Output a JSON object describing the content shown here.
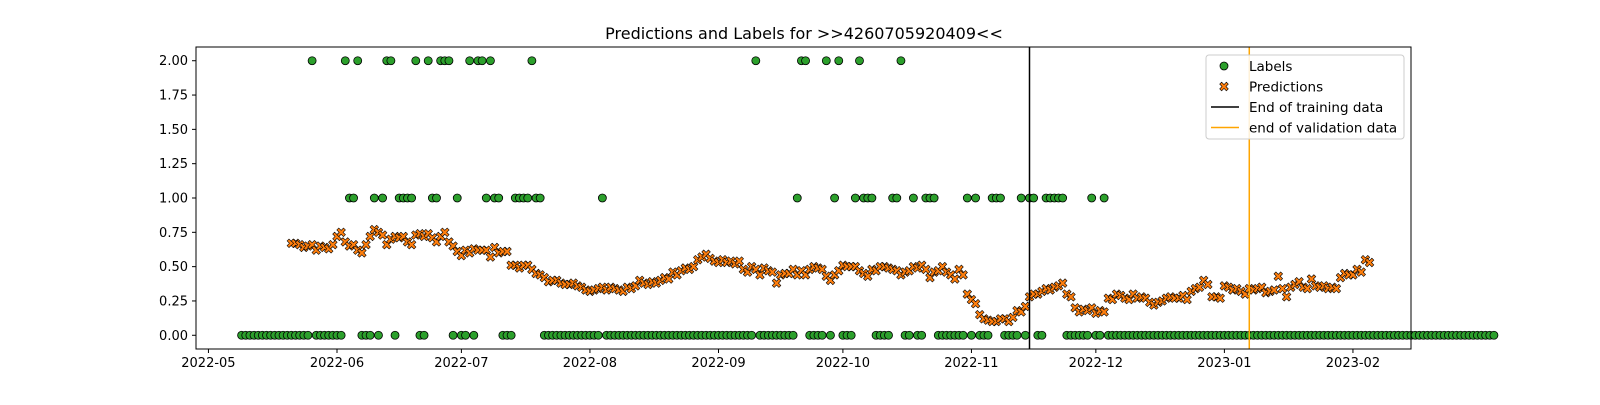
{
  "chart_data": {
    "type": "scatter",
    "title": "Predictions and Labels for >>4260705920409<<",
    "xlabel": "",
    "ylabel": "",
    "xlim": [
      "2022-04-28",
      "2023-02-15"
    ],
    "ylim": [
      -0.1,
      2.1
    ],
    "x_ticks": [
      "2022-05",
      "2022-06",
      "2022-07",
      "2022-08",
      "2022-09",
      "2022-10",
      "2022-11",
      "2022-12",
      "2023-01",
      "2023-02"
    ],
    "y_ticks": [
      "0.00",
      "0.25",
      "0.50",
      "0.75",
      "1.00",
      "1.25",
      "1.50",
      "1.75",
      "2.00"
    ],
    "grid": false,
    "legend_position": "top-right",
    "series": [
      {
        "name": "Labels",
        "marker": "circle",
        "color": "#2ca02c",
        "edge_color": "#000000",
        "start_date": "2022-05-09",
        "values": [
          0,
          0,
          0,
          0,
          0,
          0,
          0,
          0,
          0,
          0,
          0,
          0,
          0,
          0,
          0,
          0,
          0,
          2,
          0,
          0,
          0,
          0,
          0,
          0,
          0,
          2,
          1,
          1,
          2,
          0,
          0,
          0,
          1,
          0,
          1,
          2,
          2,
          0,
          1,
          1,
          1,
          1,
          2,
          0,
          0,
          2,
          1,
          1,
          2,
          2,
          2,
          0,
          1,
          0,
          0,
          2,
          0,
          2,
          2,
          1,
          2,
          1,
          1,
          0,
          0,
          0,
          1,
          1,
          1,
          1,
          2,
          1,
          1,
          0,
          0,
          0,
          0,
          0,
          0,
          0,
          0,
          0,
          0,
          0,
          0,
          0,
          0,
          1,
          0,
          0,
          0,
          0,
          0,
          0,
          0,
          0,
          0,
          0,
          0,
          0,
          0,
          0,
          0,
          0,
          0,
          0,
          0,
          0,
          0,
          0,
          0,
          0,
          0,
          0,
          0,
          0,
          0,
          0,
          0,
          0,
          0,
          0,
          0,
          0,
          2,
          0,
          0,
          0,
          0,
          0,
          0,
          0,
          0,
          0,
          1,
          2,
          2,
          0,
          0,
          0,
          0,
          2,
          0,
          1,
          2,
          0,
          0,
          0,
          1,
          2,
          1,
          1,
          1,
          0,
          0,
          0,
          0,
          1,
          1,
          2,
          0,
          0,
          1,
          0,
          0,
          1,
          1,
          1,
          0,
          0,
          0,
          0,
          0,
          0,
          0,
          1,
          0,
          1,
          0,
          0,
          0,
          1,
          1,
          1,
          0,
          0,
          0,
          0,
          1,
          0,
          1,
          1,
          0,
          0,
          1,
          1,
          1,
          1,
          1,
          0,
          0,
          0,
          0,
          0,
          0,
          1,
          0,
          0,
          1,
          0,
          0,
          0,
          0,
          0,
          0,
          0,
          0,
          0,
          0,
          0,
          0,
          0,
          0,
          0,
          0,
          0,
          0,
          0,
          0,
          0,
          0,
          0,
          0,
          0,
          0,
          0,
          0,
          0,
          0,
          0,
          0,
          0,
          0,
          0,
          0,
          0,
          0,
          0,
          0,
          0,
          0,
          0,
          0,
          0,
          0,
          0,
          0,
          0,
          0,
          0,
          0,
          0,
          0,
          0,
          0,
          0,
          0,
          0,
          0,
          0,
          0,
          0,
          0,
          0,
          0,
          0,
          0,
          0,
          0,
          0,
          0,
          0,
          0,
          0,
          0,
          0,
          0,
          0,
          0,
          0,
          0,
          0,
          0,
          0,
          0,
          0,
          0,
          0,
          0,
          0,
          0,
          0,
          0
        ]
      },
      {
        "name": "Predictions",
        "marker": "x",
        "color": "#ff7f0e",
        "edge_color": "#000000",
        "start_date": "2022-05-21",
        "values": [
          0.67,
          0.67,
          0.66,
          0.64,
          0.65,
          0.66,
          0.62,
          0.65,
          0.64,
          0.63,
          0.66,
          0.72,
          0.75,
          0.68,
          0.65,
          0.66,
          0.62,
          0.6,
          0.66,
          0.72,
          0.77,
          0.75,
          0.73,
          0.66,
          0.7,
          0.72,
          0.71,
          0.72,
          0.68,
          0.66,
          0.73,
          0.74,
          0.72,
          0.74,
          0.71,
          0.68,
          0.72,
          0.75,
          0.68,
          0.65,
          0.61,
          0.58,
          0.62,
          0.6,
          0.63,
          0.62,
          0.62,
          0.62,
          0.57,
          0.64,
          0.6,
          0.61,
          0.61,
          0.51,
          0.51,
          0.49,
          0.51,
          0.51,
          0.48,
          0.45,
          0.44,
          0.42,
          0.39,
          0.4,
          0.4,
          0.38,
          0.37,
          0.37,
          0.38,
          0.36,
          0.35,
          0.33,
          0.32,
          0.33,
          0.34,
          0.35,
          0.33,
          0.35,
          0.34,
          0.33,
          0.32,
          0.35,
          0.34,
          0.36,
          0.4,
          0.38,
          0.37,
          0.39,
          0.38,
          0.4,
          0.42,
          0.41,
          0.46,
          0.44,
          0.47,
          0.49,
          0.48,
          0.5,
          0.55,
          0.57,
          0.59,
          0.56,
          0.54,
          0.53,
          0.55,
          0.53,
          0.54,
          0.52,
          0.54,
          0.48,
          0.46,
          0.5,
          0.48,
          0.44,
          0.49,
          0.47,
          0.46,
          0.38,
          0.44,
          0.45,
          0.45,
          0.48,
          0.44,
          0.47,
          0.44,
          0.48,
          0.5,
          0.49,
          0.48,
          0.43,
          0.4,
          0.44,
          0.47,
          0.51,
          0.5,
          0.5,
          0.5,
          0.47,
          0.45,
          0.43,
          0.48,
          0.47,
          0.5,
          0.5,
          0.49,
          0.48,
          0.47,
          0.44,
          0.46,
          0.47,
          0.5,
          0.49,
          0.51,
          0.48,
          0.42,
          0.46,
          0.47,
          0.5,
          0.46,
          0.44,
          0.41,
          0.48,
          0.44,
          0.3,
          0.26,
          0.23,
          0.15,
          0.12,
          0.11,
          0.1,
          0.1,
          0.12,
          0.12,
          0.1,
          0.13,
          0.18,
          0.17,
          0.21,
          0.28,
          0.3,
          0.3,
          0.32,
          0.34,
          0.33,
          0.35,
          0.36,
          0.38,
          0.3,
          0.28,
          0.2,
          0.17,
          0.19,
          0.18,
          0.2,
          0.16,
          0.18,
          0.17,
          0.27,
          0.26,
          0.3,
          0.29,
          0.27,
          0.26,
          0.3,
          0.27,
          0.28,
          0.27,
          0.24,
          0.22,
          0.24,
          0.25,
          0.27,
          0.28,
          0.27,
          0.27,
          0.29,
          0.26,
          0.32,
          0.34,
          0.35,
          0.4,
          0.37,
          0.28,
          0.28,
          0.27,
          0.36,
          0.35,
          0.33,
          0.34,
          0.32,
          0.3,
          0.34,
          0.33,
          0.34,
          0.35,
          0.31,
          0.32,
          0.33,
          0.43,
          0.34,
          0.28,
          0.35,
          0.37,
          0.39,
          0.35,
          0.34,
          0.41,
          0.36,
          0.35,
          0.36,
          0.34,
          0.35,
          0.34,
          0.42,
          0.45,
          0.44,
          0.44,
          0.48,
          0.46,
          0.55,
          0.53
        ]
      }
    ],
    "vertical_lines": [
      {
        "name": "End of training data",
        "x": "2022-11-15",
        "color": "#000000"
      },
      {
        "name": "end of validation data",
        "x": "2023-01-07",
        "color": "#ffa500"
      }
    ]
  }
}
